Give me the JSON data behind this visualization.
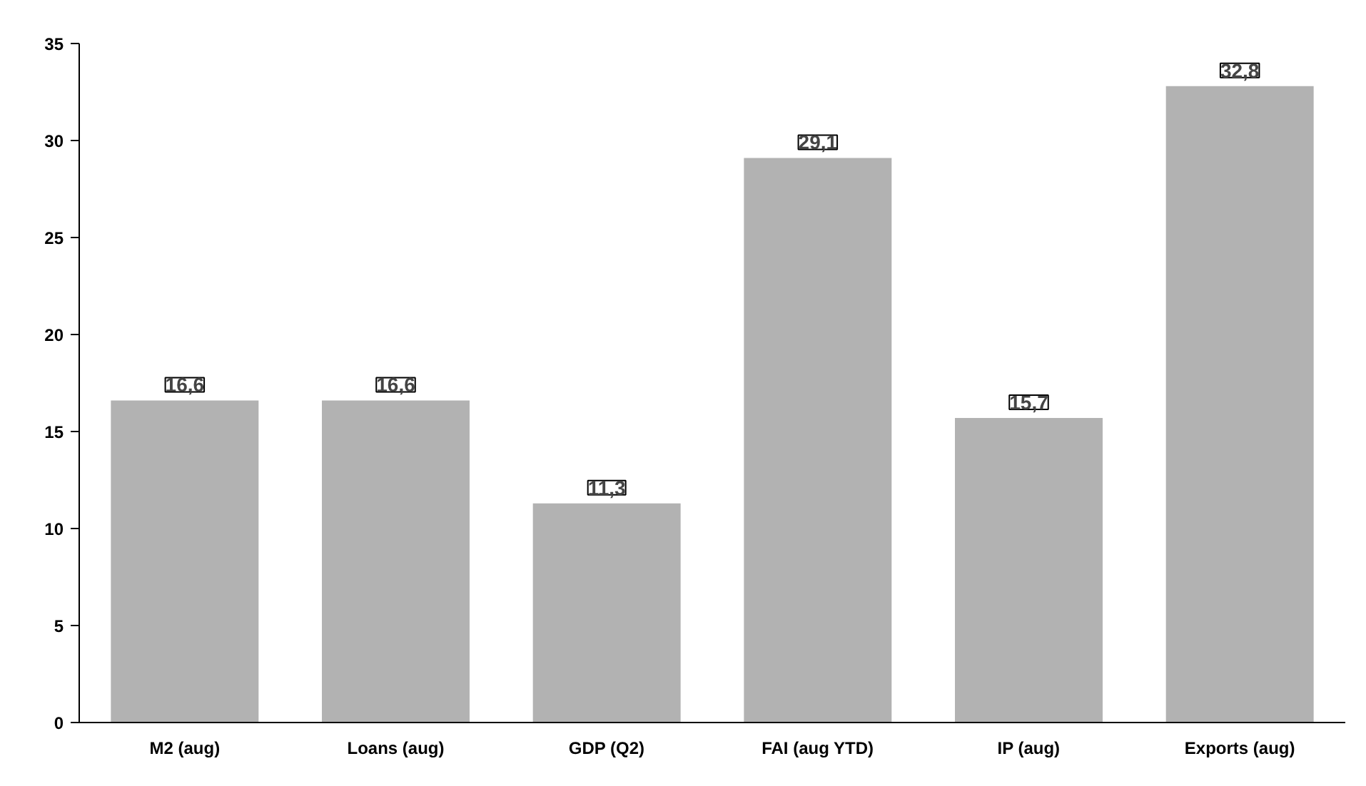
{
  "chart_data": {
    "type": "bar",
    "categories": [
      "M2 (aug)",
      "Loans (aug)",
      "GDP (Q2)",
      "FAI (aug YTD)",
      "IP (aug)",
      "Exports (aug)"
    ],
    "values": [
      16.6,
      16.6,
      11.3,
      29.1,
      15.7,
      32.8
    ],
    "value_labels": [
      "16,6",
      "16,6",
      "11,3",
      "29,1",
      "15,7",
      "32,8"
    ],
    "color": "#b2b2b2",
    "ylim": [
      0,
      35
    ],
    "yticks": [
      0,
      5,
      10,
      15,
      20,
      25,
      30,
      35
    ]
  }
}
